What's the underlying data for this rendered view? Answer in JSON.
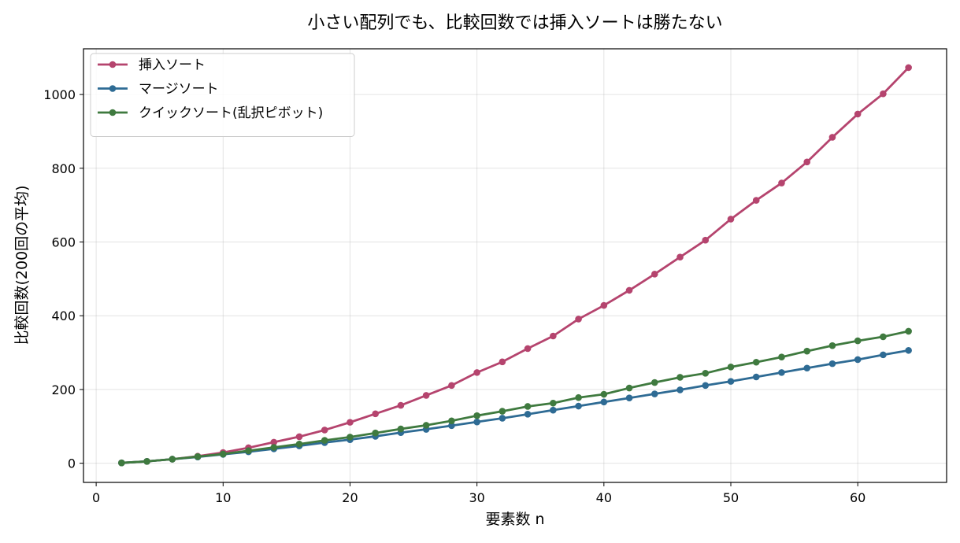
{
  "chart_data": {
    "type": "line",
    "title": "小さい配列でも、比較回数では挿入ソートは勝たない",
    "xlabel": "要素数 n",
    "ylabel": "比較回数(200回の平均)",
    "xlim": [
      -1,
      67
    ],
    "ylim": [
      -52,
      1124
    ],
    "xticks": [
      0,
      10,
      20,
      30,
      40,
      50,
      60
    ],
    "yticks": [
      0,
      200,
      400,
      600,
      800,
      1000
    ],
    "grid": true,
    "legend_position": "top-left",
    "x": [
      2,
      4,
      6,
      8,
      10,
      12,
      14,
      16,
      18,
      20,
      22,
      24,
      26,
      28,
      30,
      32,
      34,
      36,
      38,
      40,
      42,
      44,
      46,
      48,
      50,
      52,
      54,
      56,
      58,
      60,
      62,
      64
    ],
    "series": [
      {
        "name": "挿入ソート",
        "color": "#b5446e",
        "values": [
          1,
          5,
          11,
          19,
          29,
          42,
          57,
          72,
          90,
          111,
          134,
          157,
          184,
          211,
          246,
          275,
          311,
          345,
          391,
          428,
          469,
          513,
          559,
          605,
          662,
          713,
          760,
          817,
          884,
          947,
          1002,
          1073
        ]
      },
      {
        "name": "マージソート",
        "color": "#2e6b94",
        "values": [
          1,
          5,
          11,
          17,
          24,
          31,
          39,
          47,
          56,
          64,
          73,
          83,
          92,
          102,
          112,
          122,
          133,
          144,
          155,
          166,
          177,
          188,
          199,
          211,
          222,
          234,
          246,
          258,
          270,
          281,
          294,
          306
        ]
      },
      {
        "name": "クイックソート(乱択ピボット)",
        "color": "#3f7a3f",
        "values": [
          1,
          5,
          11,
          18,
          25,
          34,
          43,
          52,
          62,
          71,
          82,
          93,
          103,
          115,
          129,
          141,
          154,
          163,
          178,
          187,
          204,
          219,
          233,
          244,
          261,
          274,
          288,
          304,
          319,
          332,
          343,
          358
        ]
      }
    ]
  }
}
